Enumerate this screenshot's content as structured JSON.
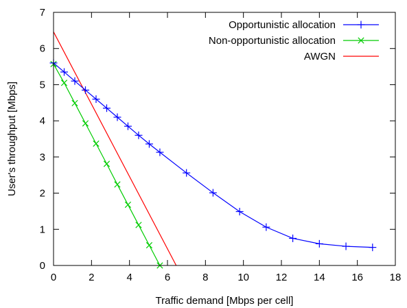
{
  "chart_data": {
    "type": "line",
    "title": "",
    "xlabel": "Traffic demand [Mbps per cell]",
    "ylabel": "User's throughput [Mbps]",
    "xlim": [
      0,
      18
    ],
    "ylim": [
      0,
      7
    ],
    "xticks": [
      0,
      2,
      4,
      6,
      8,
      10,
      12,
      14,
      16,
      18
    ],
    "yticks": [
      0,
      1,
      2,
      3,
      4,
      5,
      6,
      7
    ],
    "grid": false,
    "legend_position": "top-right",
    "series": [
      {
        "name": "Opportunistic allocation",
        "color": "#0000ff",
        "marker": "plus",
        "points": [
          [
            0,
            5.6
          ],
          [
            0.56,
            5.35
          ],
          [
            1.12,
            5.1
          ],
          [
            1.68,
            4.85
          ],
          [
            2.24,
            4.6
          ],
          [
            2.8,
            4.35
          ],
          [
            3.36,
            4.1
          ],
          [
            3.92,
            3.85
          ],
          [
            4.48,
            3.6
          ],
          [
            5.04,
            3.36
          ],
          [
            5.6,
            3.13
          ],
          [
            7.0,
            2.56
          ],
          [
            8.4,
            2.01
          ],
          [
            9.8,
            1.49
          ],
          [
            11.2,
            1.06
          ],
          [
            12.6,
            0.75
          ],
          [
            14.0,
            0.6
          ],
          [
            15.4,
            0.53
          ],
          [
            16.8,
            0.5
          ]
        ]
      },
      {
        "name": "Non-opportunistic allocation",
        "color": "#00cc00",
        "marker": "cross",
        "points": [
          [
            0,
            5.57
          ],
          [
            0.56,
            5.05
          ],
          [
            1.12,
            4.49
          ],
          [
            1.68,
            3.93
          ],
          [
            2.24,
            3.37
          ],
          [
            2.8,
            2.81
          ],
          [
            3.36,
            2.24
          ],
          [
            3.92,
            1.68
          ],
          [
            4.48,
            1.12
          ],
          [
            5.04,
            0.56
          ],
          [
            5.6,
            0.0
          ]
        ]
      },
      {
        "name": "AWGN",
        "color": "#ff0000",
        "marker": "none",
        "points": [
          [
            0,
            6.46
          ],
          [
            6.46,
            0
          ]
        ]
      }
    ]
  }
}
